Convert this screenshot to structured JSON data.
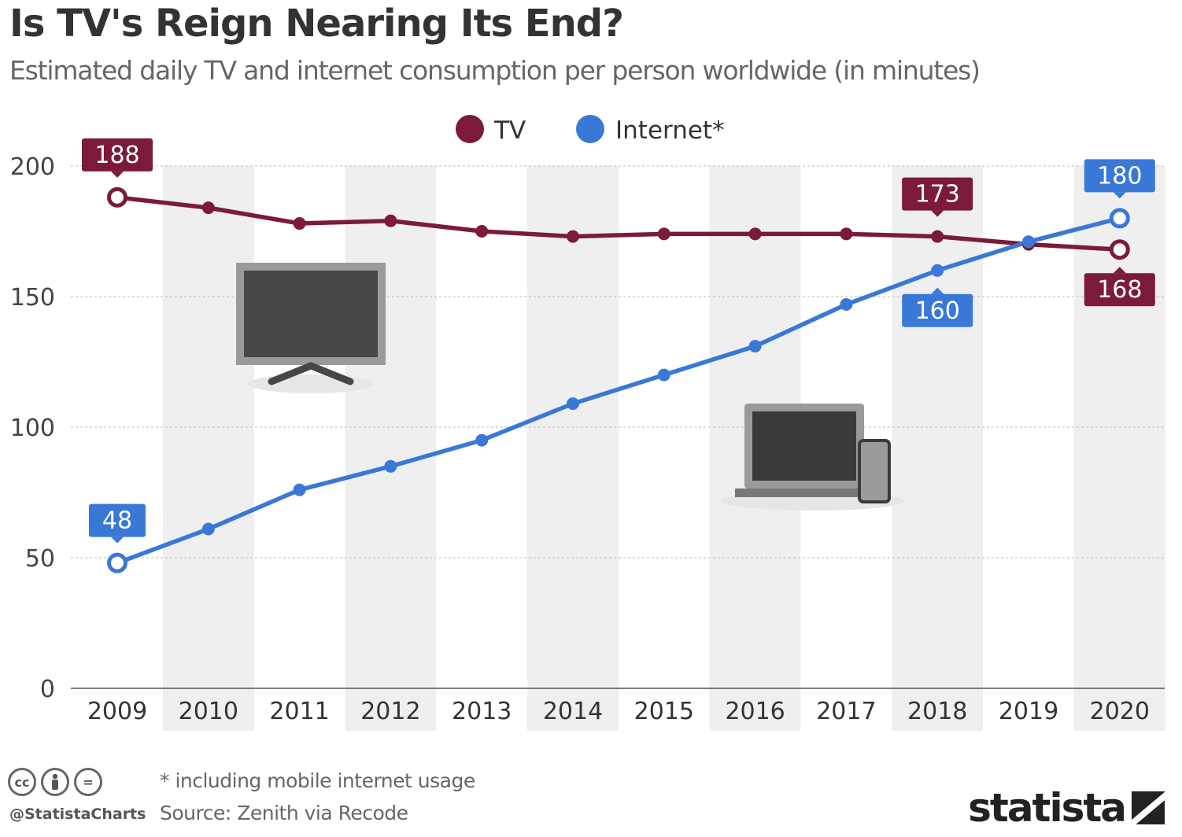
{
  "title": "Is TV's Reign Nearing Its End?",
  "subtitle": "Estimated daily TV and internet consumption per person worldwide (in minutes)",
  "footer": {
    "note": "* including mobile internet usage",
    "source": "Source: Zenith via Recode",
    "handle": "@StatistaCharts",
    "brand": "statista",
    "license_icons": [
      "cc-icon",
      "attribution-icon",
      "no-derivatives-icon"
    ]
  },
  "colors": {
    "tv": "#7b1a3a",
    "internet": "#3a78d8",
    "band": "#efefef",
    "axis": "#555555"
  },
  "chart_data": {
    "type": "line",
    "title": "Is TV's Reign Nearing Its End?",
    "subtitle": "Estimated daily TV and internet consumption per person worldwide (in minutes)",
    "x": [
      "2009",
      "2010",
      "2011",
      "2012",
      "2013",
      "2014",
      "2015",
      "2016",
      "2017",
      "2018",
      "2019",
      "2020"
    ],
    "series": [
      {
        "name": "TV",
        "color": "#7b1a3a",
        "values": [
          188,
          184,
          178,
          179,
          175,
          173,
          174,
          174,
          174,
          173,
          170,
          168
        ]
      },
      {
        "name": "Internet*",
        "color": "#3a78d8",
        "values": [
          48,
          61,
          76,
          85,
          95,
          109,
          120,
          131,
          147,
          160,
          171,
          180
        ]
      }
    ],
    "data_labels": [
      {
        "series": "TV",
        "x": "2009",
        "text": "188",
        "position": "above"
      },
      {
        "series": "TV",
        "x": "2018",
        "text": "173",
        "position": "above"
      },
      {
        "series": "TV",
        "x": "2020",
        "text": "168",
        "position": "below"
      },
      {
        "series": "Internet*",
        "x": "2009",
        "text": "48",
        "position": "above"
      },
      {
        "series": "Internet*",
        "x": "2018",
        "text": "160",
        "position": "below"
      },
      {
        "series": "Internet*",
        "x": "2020",
        "text": "180",
        "position": "above"
      }
    ],
    "y_ticks": [
      0,
      50,
      100,
      150,
      200
    ],
    "ylim": [
      0,
      200
    ],
    "xlabel": "",
    "ylabel": "",
    "grid": true,
    "legend": "top-center",
    "decorations": [
      "tv-icon",
      "laptop-phone-icon"
    ]
  }
}
